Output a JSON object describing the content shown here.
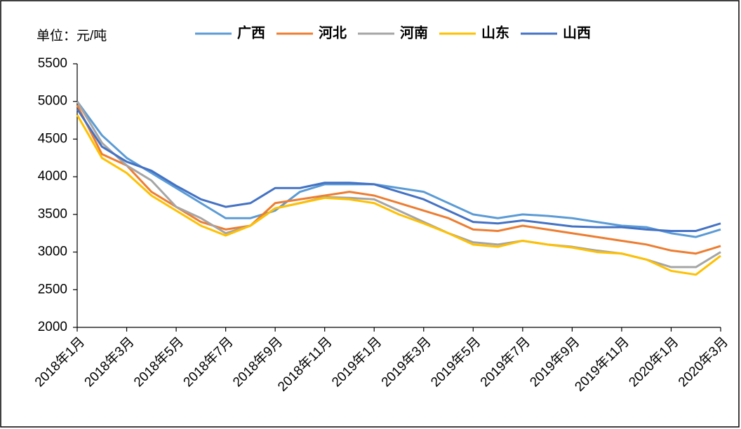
{
  "chart_data": {
    "type": "line",
    "unit_label": "单位：元/吨",
    "categories": [
      "2018年1月",
      null,
      "2018年3月",
      null,
      "2018年5月",
      null,
      "2018年7月",
      null,
      "2018年9月",
      null,
      "2018年11月",
      null,
      "2019年1月",
      null,
      "2019年3月",
      null,
      "2019年5月",
      null,
      "2019年7月",
      null,
      "2019年9月",
      null,
      "2019年11月",
      null,
      "2020年1月",
      null,
      "2020年3月"
    ],
    "series": [
      {
        "name": "广西",
        "color": "#5b9bd5",
        "values": [
          5000,
          4550,
          4250,
          4050,
          3850,
          3650,
          3450,
          3450,
          3550,
          3800,
          3900,
          3900,
          3900,
          3850,
          3800,
          3650,
          3500,
          3450,
          3500,
          3480,
          3450,
          3400,
          3350,
          3330,
          3250,
          3200,
          3300
        ]
      },
      {
        "name": "河北",
        "color": "#ed7d31",
        "values": [
          4950,
          4300,
          4150,
          3800,
          3600,
          3400,
          3300,
          3350,
          3650,
          3700,
          3750,
          3800,
          3750,
          3650,
          3550,
          3450,
          3300,
          3280,
          3350,
          3300,
          3250,
          3200,
          3150,
          3100,
          3020,
          2980,
          3080
        ]
      },
      {
        "name": "河南",
        "color": "#a5a5a5",
        "values": [
          5000,
          4450,
          4150,
          3950,
          3600,
          3450,
          3250,
          3350,
          3580,
          3650,
          3730,
          3720,
          3700,
          3550,
          3400,
          3250,
          3130,
          3100,
          3150,
          3100,
          3070,
          3020,
          2980,
          2900,
          2800,
          2800,
          3000
        ]
      },
      {
        "name": "山东",
        "color": "#ffc000",
        "values": [
          4820,
          4250,
          4050,
          3750,
          3550,
          3350,
          3220,
          3350,
          3580,
          3650,
          3720,
          3700,
          3650,
          3500,
          3380,
          3250,
          3100,
          3070,
          3150,
          3100,
          3060,
          3000,
          2980,
          2900,
          2750,
          2700,
          2950
        ]
      },
      {
        "name": "山西",
        "color": "#4472c4",
        "values": [
          4900,
          4400,
          4200,
          4080,
          3880,
          3700,
          3600,
          3650,
          3850,
          3850,
          3920,
          3920,
          3900,
          3800,
          3700,
          3550,
          3400,
          3380,
          3420,
          3380,
          3340,
          3330,
          3330,
          3300,
          3280,
          3280,
          3380
        ]
      }
    ],
    "ylim": [
      2000,
      5500
    ],
    "yticks": [
      2000,
      2500,
      3000,
      3500,
      4000,
      4500,
      5000,
      5500
    ]
  }
}
